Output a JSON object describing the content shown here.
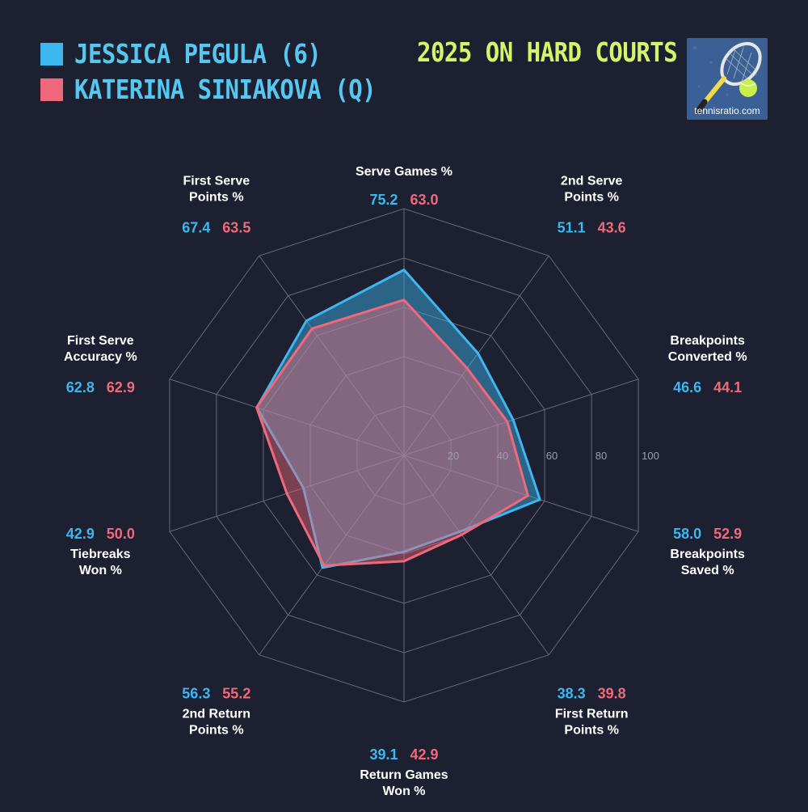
{
  "header": {
    "title": "2025 ON HARD COURTS",
    "logo_text": "tennisratio.com"
  },
  "chart_data": {
    "type": "radar",
    "title": "2025 ON HARD COURTS",
    "axes": [
      [
        "Serve Games %"
      ],
      [
        "2nd Serve",
        "Points %"
      ],
      [
        "Breakpoints",
        "Converted %"
      ],
      [
        "Breakpoints",
        "Saved %"
      ],
      [
        "First Return",
        "Points %"
      ],
      [
        "Return Games",
        "Won %"
      ],
      [
        "2nd Return",
        "Points %"
      ],
      [
        "Tiebreaks",
        "Won %"
      ],
      [
        "First Serve",
        "Accuracy %"
      ],
      [
        "First Serve",
        "Points %"
      ]
    ],
    "ticks": [
      "20",
      "40",
      "60",
      "80",
      "100"
    ],
    "range": [
      0,
      100
    ],
    "series": [
      {
        "name": "JESSICA PEGULA (6)",
        "color": "#3db7ef",
        "values": [
          75.2,
          51.1,
          46.6,
          58.0,
          38.3,
          39.1,
          56.3,
          42.9,
          62.8,
          67.4
        ],
        "labels": [
          "75.2",
          "51.1",
          "46.6",
          "58.0",
          "38.3",
          "39.1",
          "56.3",
          "42.9",
          "62.8",
          "67.4"
        ]
      },
      {
        "name": "KATERINA SINIAKOVA (Q)",
        "color": "#f0697b",
        "values": [
          63.0,
          43.6,
          44.1,
          52.9,
          39.8,
          42.9,
          55.2,
          50.0,
          62.9,
          63.5
        ],
        "labels": [
          "63.0",
          "43.6",
          "44.1",
          "52.9",
          "39.8",
          "42.9",
          "55.2",
          "50.0",
          "62.9",
          "63.5"
        ]
      }
    ]
  }
}
